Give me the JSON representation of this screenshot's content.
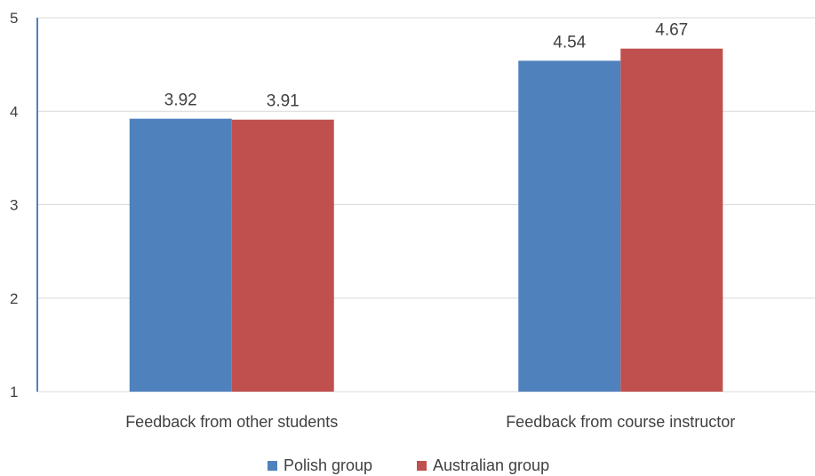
{
  "chart_data": {
    "type": "bar",
    "title": "",
    "xlabel": "",
    "ylabel": "",
    "categories": [
      "Feedback from other students",
      "Feedback from course instructor"
    ],
    "series": [
      {
        "name": "Polish group",
        "color": "#4f81bd",
        "values": [
          3.92,
          4.54
        ],
        "labels": [
          "3.92",
          "4.54"
        ]
      },
      {
        "name": "Australian group",
        "color": "#c0504d",
        "values": [
          3.91,
          4.67
        ],
        "labels": [
          "3.91",
          "4.67"
        ]
      }
    ],
    "ylim": [
      1,
      5
    ],
    "yticks": [
      "1",
      "2",
      "3",
      "4",
      "5"
    ],
    "grid": true,
    "legend_position": "bottom",
    "colors": {
      "gridline": "#d9d9d9",
      "axis": "#4f81bd"
    }
  }
}
